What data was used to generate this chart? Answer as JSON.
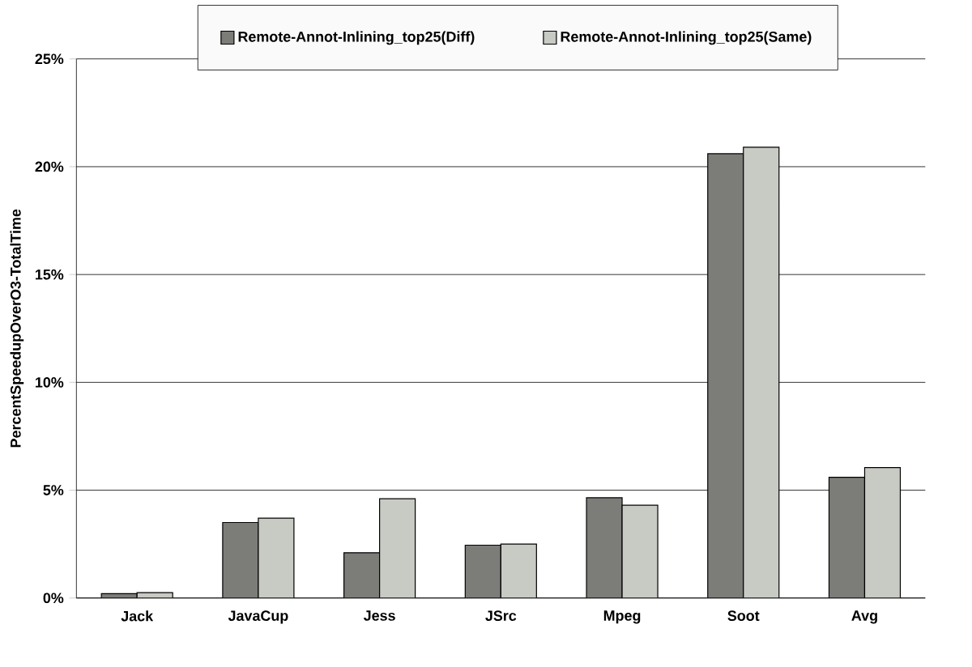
{
  "chart_data": {
    "type": "bar",
    "ylabel": "PercentSpeedupOverO3-TotalTime",
    "categories": [
      "Jack",
      "JavaCup",
      "Jess",
      "JSrc",
      "Mpeg",
      "Soot",
      "Avg"
    ],
    "series": [
      {
        "name": "Remote-Annot-Inlining_top25(Diff)",
        "color": "#7c7d79",
        "values": [
          0.2,
          3.5,
          2.1,
          2.45,
          4.65,
          20.6,
          5.6
        ]
      },
      {
        "name": "Remote-Annot-Inlining_top25(Same)",
        "color": "#c8cac4",
        "values": [
          0.25,
          3.7,
          4.6,
          2.5,
          4.3,
          20.9,
          6.05
        ]
      }
    ],
    "ylim": [
      0,
      25
    ],
    "yticks": [
      {
        "value": 0,
        "label": "0%"
      },
      {
        "value": 5,
        "label": "5%"
      },
      {
        "value": 10,
        "label": "10%"
      },
      {
        "value": 15,
        "label": "15%"
      },
      {
        "value": 20,
        "label": "20%"
      },
      {
        "value": 25,
        "label": "25%"
      }
    ],
    "grid": "y",
    "legend": "top"
  }
}
